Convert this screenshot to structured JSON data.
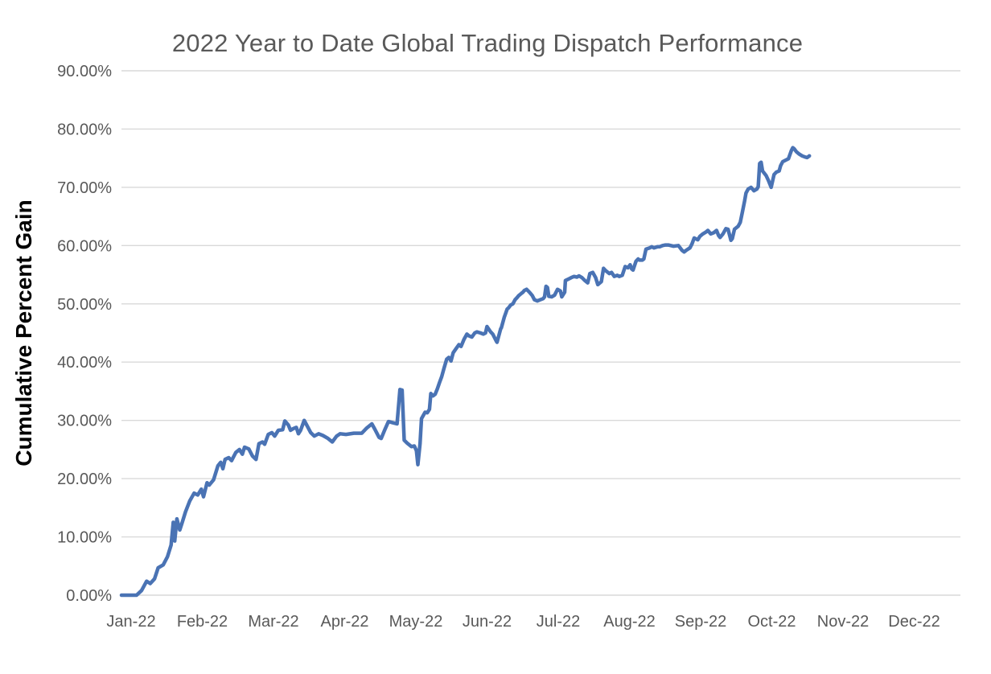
{
  "chart_data": {
    "type": "line",
    "title": "2022 Year to Date Global Trading Dispatch Performance",
    "ylabel": "Cumulative Percent Gain",
    "legend": false,
    "grid": true,
    "x_axis": {
      "categories": [
        "Jan-22",
        "Feb-22",
        "Mar-22",
        "Apr-22",
        "May-22",
        "Jun-22",
        "Jul-22",
        "Aug-22",
        "Sep-22",
        "Oct-22",
        "Nov-22",
        "Dec-22"
      ],
      "unit": "months since Jan 1, 2022 (Jan=0 ... Dec=11)",
      "range": [
        0,
        11.66
      ]
    },
    "y_axis": {
      "range": [
        0,
        90
      ],
      "tick_step": 10,
      "ticks": [
        {
          "value": 0,
          "label": "0.00%"
        },
        {
          "value": 10,
          "label": "10.00%"
        },
        {
          "value": 20,
          "label": "20.00%"
        },
        {
          "value": 30,
          "label": "30.00%"
        },
        {
          "value": 40,
          "label": "40.00%"
        },
        {
          "value": 50,
          "label": "50.00%"
        },
        {
          "value": 60,
          "label": "60.00%"
        },
        {
          "value": 70,
          "label": "70.00%"
        },
        {
          "value": 80,
          "label": "80.00%"
        },
        {
          "value": 90,
          "label": "90.00%"
        }
      ]
    },
    "colors": {
      "line": "#4a73b4",
      "gridline": "#d9d9d9",
      "tick_label": "#595959",
      "title": "#595959",
      "ylabel": "#000000",
      "background": "#ffffff"
    },
    "series": [
      {
        "name": "Cumulative Percent Gain",
        "color": "#4a73b4",
        "points": [
          [
            0.0,
            0.0
          ],
          [
            0.21,
            0.0
          ],
          [
            0.28,
            0.8
          ],
          [
            0.35,
            2.4
          ],
          [
            0.4,
            2.0
          ],
          [
            0.46,
            2.8
          ],
          [
            0.51,
            4.7
          ],
          [
            0.58,
            5.2
          ],
          [
            0.64,
            6.6
          ],
          [
            0.69,
            8.6
          ],
          [
            0.72,
            12.5
          ],
          [
            0.74,
            9.3
          ],
          [
            0.77,
            13.1
          ],
          [
            0.81,
            11.2
          ],
          [
            0.84,
            12.3
          ],
          [
            0.89,
            14.3
          ],
          [
            0.95,
            16.2
          ],
          [
            1.01,
            17.5
          ],
          [
            1.06,
            17.2
          ],
          [
            1.11,
            18.2
          ],
          [
            1.14,
            16.9
          ],
          [
            1.19,
            19.3
          ],
          [
            1.22,
            18.9
          ],
          [
            1.28,
            19.8
          ],
          [
            1.34,
            22.2
          ],
          [
            1.38,
            22.8
          ],
          [
            1.41,
            21.7
          ],
          [
            1.44,
            23.3
          ],
          [
            1.49,
            23.6
          ],
          [
            1.53,
            23.1
          ],
          [
            1.59,
            24.5
          ],
          [
            1.64,
            25.0
          ],
          [
            1.68,
            24.2
          ],
          [
            1.71,
            25.4
          ],
          [
            1.77,
            25.1
          ],
          [
            1.82,
            23.9
          ],
          [
            1.87,
            23.3
          ],
          [
            1.91,
            26.0
          ],
          [
            1.96,
            26.3
          ],
          [
            1.99,
            25.9
          ],
          [
            2.04,
            27.6
          ],
          [
            2.09,
            27.9
          ],
          [
            2.13,
            27.3
          ],
          [
            2.18,
            28.3
          ],
          [
            2.24,
            28.4
          ],
          [
            2.27,
            29.9
          ],
          [
            2.32,
            29.2
          ],
          [
            2.35,
            28.3
          ],
          [
            2.39,
            28.6
          ],
          [
            2.43,
            28.8
          ],
          [
            2.46,
            27.7
          ],
          [
            2.49,
            28.3
          ],
          [
            2.54,
            30.0
          ],
          [
            2.57,
            29.3
          ],
          [
            2.63,
            27.9
          ],
          [
            2.68,
            27.3
          ],
          [
            2.74,
            27.7
          ],
          [
            2.8,
            27.4
          ],
          [
            2.87,
            26.9
          ],
          [
            2.93,
            26.3
          ],
          [
            2.99,
            27.3
          ],
          [
            3.04,
            27.7
          ],
          [
            3.12,
            27.6
          ],
          [
            3.23,
            27.8
          ],
          [
            3.34,
            27.8
          ],
          [
            3.41,
            28.7
          ],
          [
            3.48,
            29.4
          ],
          [
            3.52,
            28.5
          ],
          [
            3.58,
            27.1
          ],
          [
            3.61,
            26.9
          ],
          [
            3.66,
            28.4
          ],
          [
            3.71,
            29.8
          ],
          [
            3.77,
            29.6
          ],
          [
            3.83,
            29.4
          ],
          [
            3.87,
            35.3
          ],
          [
            3.9,
            35.2
          ],
          [
            3.93,
            26.6
          ],
          [
            3.97,
            26.1
          ],
          [
            4.03,
            25.5
          ],
          [
            4.07,
            25.6
          ],
          [
            4.1,
            24.8
          ],
          [
            4.12,
            22.4
          ],
          [
            4.15,
            26.0
          ],
          [
            4.17,
            30.3
          ],
          [
            4.22,
            31.4
          ],
          [
            4.25,
            31.3
          ],
          [
            4.28,
            31.9
          ],
          [
            4.3,
            34.6
          ],
          [
            4.33,
            34.2
          ],
          [
            4.36,
            34.5
          ],
          [
            4.39,
            35.4
          ],
          [
            4.42,
            36.5
          ],
          [
            4.45,
            37.5
          ],
          [
            4.48,
            38.8
          ],
          [
            4.52,
            40.5
          ],
          [
            4.55,
            40.8
          ],
          [
            4.58,
            40.2
          ],
          [
            4.61,
            41.6
          ],
          [
            4.65,
            42.3
          ],
          [
            4.69,
            43.0
          ],
          [
            4.72,
            42.7
          ],
          [
            4.76,
            43.9
          ],
          [
            4.8,
            44.8
          ],
          [
            4.83,
            44.5
          ],
          [
            4.87,
            44.3
          ],
          [
            4.91,
            45.0
          ],
          [
            4.94,
            45.2
          ],
          [
            4.99,
            45.0
          ],
          [
            5.03,
            44.8
          ],
          [
            5.06,
            45.0
          ],
          [
            5.08,
            46.1
          ],
          [
            5.13,
            45.2
          ],
          [
            5.16,
            44.8
          ],
          [
            5.21,
            43.6
          ],
          [
            5.22,
            43.4
          ],
          [
            5.27,
            45.7
          ],
          [
            5.28,
            45.9
          ],
          [
            5.32,
            47.7
          ],
          [
            5.34,
            48.4
          ],
          [
            5.36,
            49.1
          ],
          [
            5.38,
            49.3
          ],
          [
            5.41,
            49.8
          ],
          [
            5.44,
            50.0
          ],
          [
            5.47,
            50.7
          ],
          [
            5.5,
            51.1
          ],
          [
            5.52,
            51.4
          ],
          [
            5.56,
            51.8
          ],
          [
            5.58,
            52.0
          ],
          [
            5.6,
            52.3
          ],
          [
            5.63,
            52.5
          ],
          [
            5.67,
            52.0
          ],
          [
            5.71,
            51.4
          ],
          [
            5.74,
            50.7
          ],
          [
            5.78,
            50.5
          ],
          [
            5.82,
            50.7
          ],
          [
            5.86,
            50.9
          ],
          [
            5.88,
            51.2
          ],
          [
            5.9,
            53.0
          ],
          [
            5.92,
            52.8
          ],
          [
            5.94,
            51.3
          ],
          [
            5.98,
            51.2
          ],
          [
            6.02,
            51.5
          ],
          [
            6.06,
            52.5
          ],
          [
            6.1,
            52.2
          ],
          [
            6.12,
            51.2
          ],
          [
            6.16,
            52.0
          ],
          [
            6.17,
            54.0
          ],
          [
            6.22,
            54.3
          ],
          [
            6.25,
            54.5
          ],
          [
            6.29,
            54.7
          ],
          [
            6.33,
            54.6
          ],
          [
            6.36,
            54.8
          ],
          [
            6.4,
            54.5
          ],
          [
            6.44,
            54.0
          ],
          [
            6.48,
            53.6
          ],
          [
            6.51,
            55.2
          ],
          [
            6.55,
            55.4
          ],
          [
            6.59,
            54.5
          ],
          [
            6.62,
            53.3
          ],
          [
            6.67,
            53.8
          ],
          [
            6.7,
            56.1
          ],
          [
            6.73,
            55.7
          ],
          [
            6.78,
            55.2
          ],
          [
            6.81,
            55.4
          ],
          [
            6.85,
            54.7
          ],
          [
            6.89,
            54.9
          ],
          [
            6.92,
            54.7
          ],
          [
            6.96,
            54.9
          ],
          [
            7.0,
            56.4
          ],
          [
            7.04,
            56.2
          ],
          [
            7.07,
            56.7
          ],
          [
            7.09,
            56.0
          ],
          [
            7.11,
            55.8
          ],
          [
            7.15,
            57.3
          ],
          [
            7.18,
            57.7
          ],
          [
            7.2,
            57.5
          ],
          [
            7.24,
            57.5
          ],
          [
            7.26,
            57.7
          ],
          [
            7.29,
            59.4
          ],
          [
            7.34,
            59.6
          ],
          [
            7.37,
            59.8
          ],
          [
            7.4,
            59.6
          ],
          [
            7.45,
            59.8
          ],
          [
            7.48,
            59.8
          ],
          [
            7.52,
            60.0
          ],
          [
            7.56,
            60.1
          ],
          [
            7.6,
            60.1
          ],
          [
            7.67,
            59.9
          ],
          [
            7.74,
            60.0
          ],
          [
            7.79,
            59.2
          ],
          [
            7.82,
            58.9
          ],
          [
            7.85,
            59.2
          ],
          [
            7.9,
            59.6
          ],
          [
            7.93,
            60.3
          ],
          [
            7.96,
            61.3
          ],
          [
            8.01,
            61.0
          ],
          [
            8.04,
            61.6
          ],
          [
            8.08,
            62.0
          ],
          [
            8.12,
            62.3
          ],
          [
            8.15,
            62.6
          ],
          [
            8.19,
            62.0
          ],
          [
            8.23,
            62.2
          ],
          [
            8.27,
            62.6
          ],
          [
            8.3,
            61.7
          ],
          [
            8.32,
            61.4
          ],
          [
            8.36,
            62.0
          ],
          [
            8.4,
            62.9
          ],
          [
            8.43,
            62.8
          ],
          [
            8.47,
            60.9
          ],
          [
            8.49,
            61.2
          ],
          [
            8.52,
            62.8
          ],
          [
            8.57,
            63.3
          ],
          [
            8.6,
            64.0
          ],
          [
            8.63,
            65.8
          ],
          [
            8.66,
            67.6
          ],
          [
            8.68,
            69.0
          ],
          [
            8.71,
            69.7
          ],
          [
            8.75,
            70.0
          ],
          [
            8.79,
            69.4
          ],
          [
            8.83,
            69.7
          ],
          [
            8.85,
            70.1
          ],
          [
            8.87,
            74.1
          ],
          [
            8.89,
            74.3
          ],
          [
            8.91,
            72.8
          ],
          [
            8.96,
            72.0
          ],
          [
            8.99,
            71.2
          ],
          [
            9.03,
            70.0
          ],
          [
            9.07,
            72.2
          ],
          [
            9.1,
            72.6
          ],
          [
            9.14,
            72.8
          ],
          [
            9.16,
            73.7
          ],
          [
            9.19,
            74.4
          ],
          [
            9.24,
            74.7
          ],
          [
            9.27,
            74.9
          ],
          [
            9.31,
            76.3
          ],
          [
            9.33,
            76.8
          ],
          [
            9.35,
            76.6
          ],
          [
            9.38,
            76.1
          ],
          [
            9.42,
            75.7
          ],
          [
            9.46,
            75.4
          ],
          [
            9.5,
            75.2
          ],
          [
            9.53,
            75.1
          ],
          [
            9.56,
            75.4
          ]
        ]
      }
    ]
  }
}
